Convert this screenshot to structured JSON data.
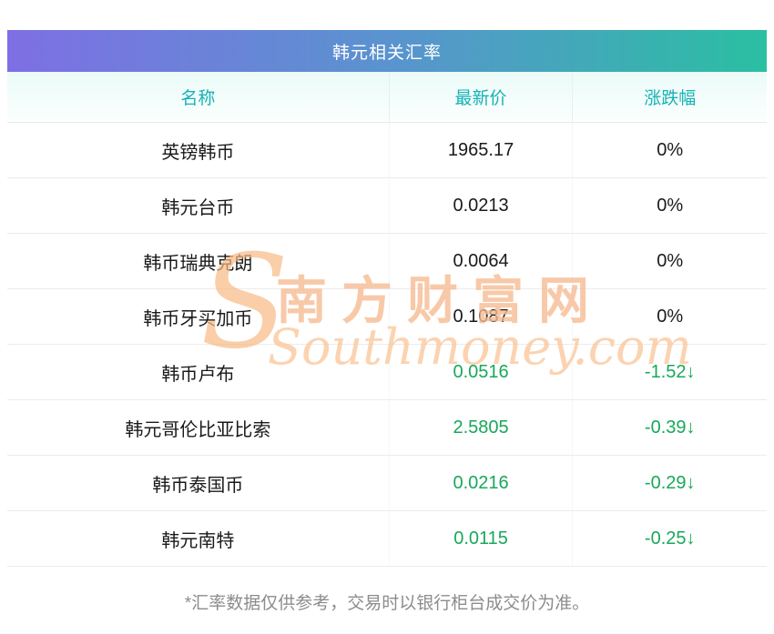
{
  "title": "韩元相关汇率",
  "chart_data": {
    "type": "table",
    "title": "韩元相关汇率",
    "columns": [
      "名称",
      "最新价",
      "涨跌幅"
    ],
    "rows": [
      {
        "name": "英镑韩币",
        "price": "1965.17",
        "change": "0%",
        "state": "flat"
      },
      {
        "name": "韩元台币",
        "price": "0.0213",
        "change": "0%",
        "state": "flat"
      },
      {
        "name": "韩币瑞典克朗",
        "price": "0.0064",
        "change": "0%",
        "state": "flat"
      },
      {
        "name": "韩币牙买加币",
        "price": "0.1087",
        "change": "0%",
        "state": "flat"
      },
      {
        "name": "韩币卢布",
        "price": "0.0516",
        "change": "-1.52↓",
        "state": "down"
      },
      {
        "name": "韩元哥伦比亚比索",
        "price": "2.5805",
        "change": "-0.39↓",
        "state": "down"
      },
      {
        "name": "韩币泰国币",
        "price": "0.0216",
        "change": "-0.29↓",
        "state": "down"
      },
      {
        "name": "韩元南特",
        "price": "0.0115",
        "change": "-0.25↓",
        "state": "down"
      }
    ]
  },
  "watermark": {
    "logo_letter": "S",
    "cn": "南方财富网",
    "en": "Southmoney.com"
  },
  "footnote": "*汇率数据仅供参考，交易时以银行柜台成交价为准。",
  "colors": {
    "title_gradient_start": "#7e6fe4",
    "title_gradient_end": "#2abfa2",
    "header_text": "#16b2b6",
    "down_green": "#18a85a",
    "watermark_orange": "#f6bc92",
    "footnote_gray": "#8c8c8c"
  }
}
